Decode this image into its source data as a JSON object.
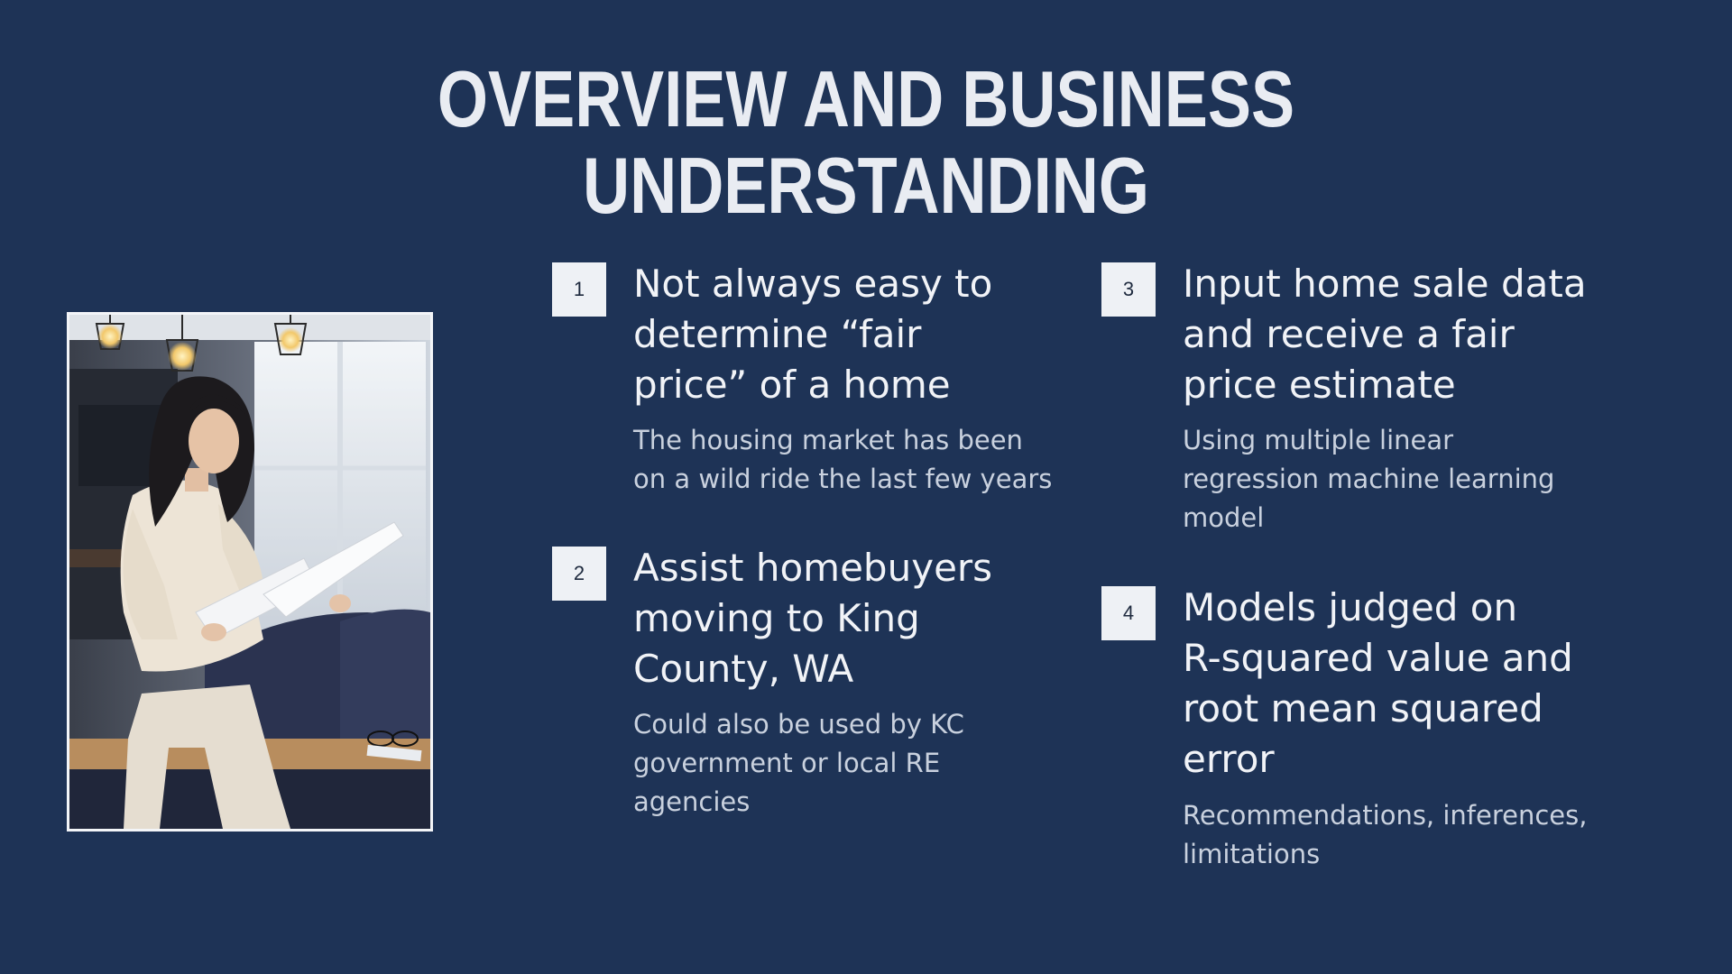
{
  "slide": {
    "title": "OVERVIEW AND BUSINESS UNDERSTANDING"
  },
  "photo": {
    "icon": "photo-woman-reading-documents"
  },
  "items": [
    {
      "number": "1",
      "heading": "Not always easy to\ndetermine “fair\nprice” of a home",
      "detail": "The housing market has been\non a wild ride the last few years"
    },
    {
      "number": "2",
      "heading": "Assist homebuyers\nmoving to King\nCounty, WA",
      "detail": "Could also be used by KC\ngovernment or local RE\nagencies"
    },
    {
      "number": "3",
      "heading": "Input home sale data\nand receive a fair\nprice estimate",
      "detail": "Using multiple linear\nregression machine learning\nmodel"
    },
    {
      "number": "4",
      "heading": "Models judged on\nR-squared value and\nroot mean squared\nerror",
      "detail": "Recommendations, inferences,\nlimitations"
    }
  ],
  "colors": {
    "background": "#1e3356",
    "badge": "#eef1f5",
    "text": "#f1f3f7",
    "subtext": "#c9d1de"
  }
}
